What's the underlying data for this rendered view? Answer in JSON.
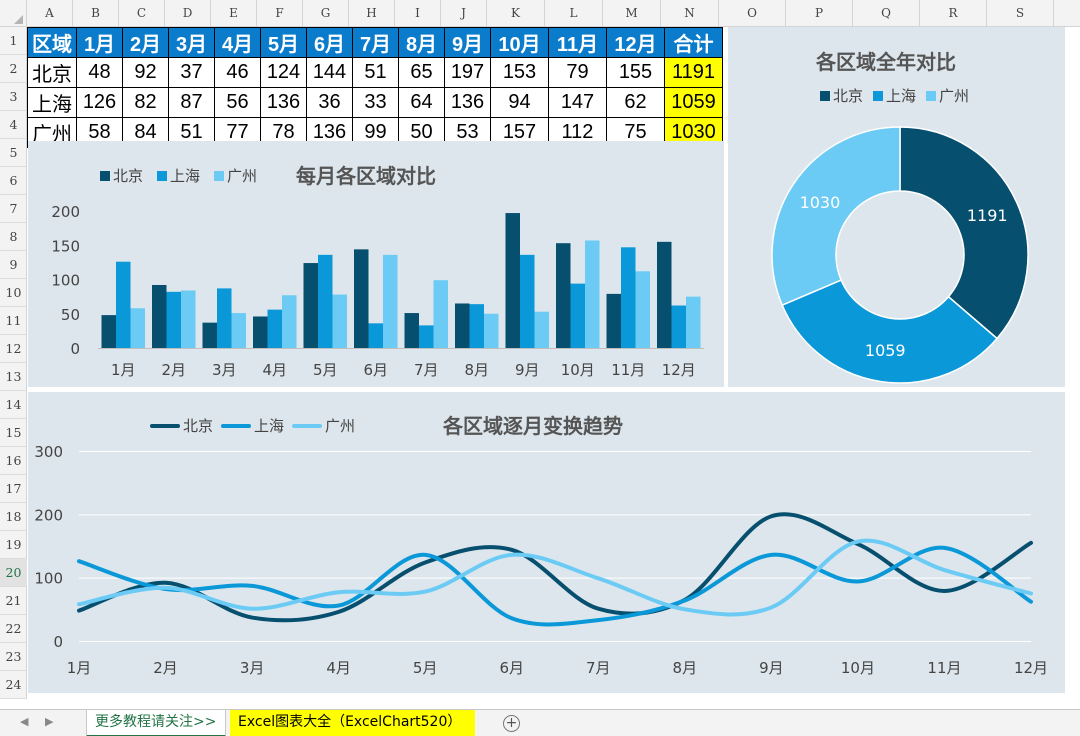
{
  "columns": [
    "A",
    "B",
    "C",
    "D",
    "E",
    "F",
    "G",
    "H",
    "I",
    "J",
    "K",
    "L",
    "M",
    "N",
    "O",
    "P",
    "Q",
    "R",
    "S"
  ],
  "rows": [
    "1",
    "2",
    "3",
    "4",
    "5",
    "6",
    "7",
    "8",
    "9",
    "10",
    "11",
    "12",
    "13",
    "14",
    "15",
    "16",
    "17",
    "18",
    "19",
    "20",
    "21",
    "22",
    "23",
    "24"
  ],
  "selected_row": "20",
  "table": {
    "header": [
      "区域",
      "1月",
      "2月",
      "3月",
      "4月",
      "5月",
      "6月",
      "7月",
      "8月",
      "9月",
      "10月",
      "11月",
      "12月",
      "合计"
    ],
    "rows": [
      {
        "region": "北京",
        "values": [
          "48",
          "92",
          "37",
          "46",
          "124",
          "144",
          "51",
          "65",
          "197",
          "153",
          "79",
          "155"
        ],
        "total": "1191"
      },
      {
        "region": "上海",
        "values": [
          "126",
          "82",
          "87",
          "56",
          "136",
          "36",
          "33",
          "64",
          "136",
          "94",
          "147",
          "62"
        ],
        "total": "1059"
      },
      {
        "region": "广州",
        "values": [
          "58",
          "84",
          "51",
          "77",
          "78",
          "136",
          "99",
          "50",
          "53",
          "157",
          "112",
          "75"
        ],
        "total": "1030"
      }
    ]
  },
  "colors": {
    "beijing": "#064f6e",
    "shanghai": "#0a98d8",
    "guangzhou": "#6ccbf4",
    "panel": "#dde6ec",
    "header": "#0b7bcb",
    "total": "#ffff00"
  },
  "chart_data": [
    {
      "type": "bar",
      "title": "每月各区域对比",
      "categories": [
        "1月",
        "2月",
        "3月",
        "4月",
        "5月",
        "6月",
        "7月",
        "8月",
        "9月",
        "10月",
        "11月",
        "12月"
      ],
      "series": [
        {
          "name": "北京",
          "values": [
            48,
            92,
            37,
            46,
            124,
            144,
            51,
            65,
            197,
            153,
            79,
            155
          ]
        },
        {
          "name": "上海",
          "values": [
            126,
            82,
            87,
            56,
            136,
            36,
            33,
            64,
            136,
            94,
            147,
            62
          ]
        },
        {
          "name": "广州",
          "values": [
            58,
            84,
            51,
            77,
            78,
            136,
            99,
            50,
            53,
            157,
            112,
            75
          ]
        }
      ],
      "ylim": [
        0,
        200
      ],
      "yticks": [
        "0",
        "50",
        "100",
        "150",
        "200"
      ],
      "legend": "top-left",
      "grid": false
    },
    {
      "type": "pie",
      "title": "各区域全年对比",
      "labels": [
        "北京",
        "上海",
        "广州"
      ],
      "values": [
        1191,
        1059,
        1030
      ],
      "value_labels": [
        "1191",
        "1059",
        "1030"
      ],
      "donut": true,
      "legend": "top"
    },
    {
      "type": "line",
      "title": "各区域逐月变换趋势",
      "categories": [
        "1月",
        "2月",
        "3月",
        "4月",
        "5月",
        "6月",
        "7月",
        "8月",
        "9月",
        "10月",
        "11月",
        "12月"
      ],
      "series": [
        {
          "name": "北京",
          "values": [
            48,
            92,
            37,
            46,
            124,
            144,
            51,
            65,
            197,
            153,
            79,
            155
          ]
        },
        {
          "name": "上海",
          "values": [
            126,
            82,
            87,
            56,
            136,
            36,
            33,
            64,
            136,
            94,
            147,
            62
          ]
        },
        {
          "name": "广州",
          "values": [
            58,
            84,
            51,
            77,
            78,
            136,
            99,
            50,
            53,
            157,
            112,
            75
          ]
        }
      ],
      "smooth": true,
      "ylim": [
        0,
        300
      ],
      "yticks": [
        "0",
        "100",
        "200",
        "300"
      ],
      "grid": true,
      "legend": "top-left"
    }
  ],
  "sheets": {
    "tab1": "更多教程请关注>>",
    "tab2": "Excel图表大全（ExcelChart520）",
    "add": "+"
  }
}
